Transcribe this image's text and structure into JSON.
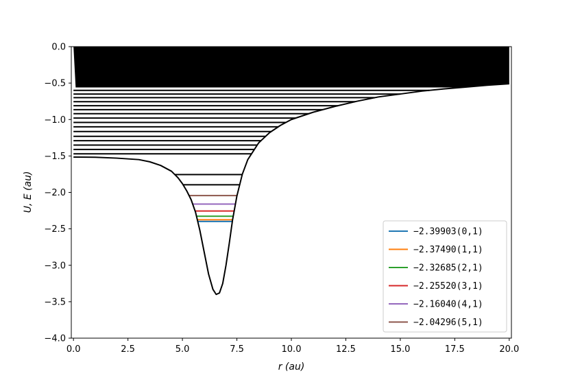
{
  "chart_data": {
    "type": "line",
    "title": "",
    "xlabel": "r (au)",
    "ylabel": "U, E (au)",
    "xlim": [
      -0.1,
      20.1
    ],
    "ylim": [
      -4.0,
      0.0
    ],
    "xticks": [
      0.0,
      2.5,
      5.0,
      7.5,
      10.0,
      12.5,
      15.0,
      17.5,
      20.0
    ],
    "xtick_labels": [
      "0.0",
      "2.5",
      "5.0",
      "7.5",
      "10.0",
      "12.5",
      "15.0",
      "17.5",
      "20.0"
    ],
    "yticks": [
      0.0,
      -0.5,
      -1.0,
      -1.5,
      -2.0,
      -2.5,
      -3.0,
      -3.5,
      -4.0
    ],
    "ytick_labels": [
      "0.0",
      "−0.5",
      "−1.0",
      "−1.5",
      "−2.0",
      "−2.5",
      "−3.0",
      "−3.5",
      "−4.0"
    ],
    "potential": {
      "color": "#000000",
      "points": [
        [
          0.0,
          -1.515
        ],
        [
          1.0,
          -1.518
        ],
        [
          2.0,
          -1.53
        ],
        [
          3.0,
          -1.55
        ],
        [
          3.5,
          -1.58
        ],
        [
          4.0,
          -1.63
        ],
        [
          4.5,
          -1.71
        ],
        [
          4.8,
          -1.8
        ],
        [
          5.0,
          -1.88
        ],
        [
          5.2,
          -1.98
        ],
        [
          5.4,
          -2.1
        ],
        [
          5.6,
          -2.27
        ],
        [
          5.8,
          -2.52
        ],
        [
          6.0,
          -2.82
        ],
        [
          6.2,
          -3.12
        ],
        [
          6.4,
          -3.33
        ],
        [
          6.55,
          -3.4
        ],
        [
          6.7,
          -3.38
        ],
        [
          6.85,
          -3.25
        ],
        [
          7.0,
          -3.0
        ],
        [
          7.15,
          -2.7
        ],
        [
          7.3,
          -2.38
        ],
        [
          7.5,
          -2.05
        ],
        [
          7.75,
          -1.75
        ],
        [
          8.0,
          -1.55
        ],
        [
          8.5,
          -1.32
        ],
        [
          9.0,
          -1.18
        ],
        [
          9.5,
          -1.08
        ],
        [
          10.0,
          -1.0
        ],
        [
          11.0,
          -0.9
        ],
        [
          12.0,
          -0.82
        ],
        [
          13.0,
          -0.75
        ],
        [
          14.0,
          -0.69
        ],
        [
          15.0,
          -0.65
        ],
        [
          16.0,
          -0.61
        ],
        [
          17.0,
          -0.58
        ],
        [
          18.0,
          -0.555
        ],
        [
          19.0,
          -0.53
        ],
        [
          20.0,
          -0.51
        ]
      ]
    },
    "continuum_fill": {
      "color": "#000000",
      "from_energy": -0.56,
      "to_energy": 0.0,
      "x_range": [
        0.0,
        20.0
      ]
    },
    "upper_levels": {
      "color": "#000000",
      "energies": [
        -0.6,
        -0.65,
        -0.7,
        -0.755,
        -0.81,
        -0.865,
        -0.92,
        -0.98,
        -1.04,
        -1.1,
        -1.165,
        -1.23,
        -1.29,
        -1.35,
        -1.41,
        -1.47,
        -1.755,
        -1.895
      ]
    },
    "levels": [
      {
        "energy": -2.39903,
        "label": "−2.39903(0,1)",
        "color": "#1f77b4"
      },
      {
        "energy": -2.3749,
        "label": "−2.37490(1,1)",
        "color": "#ff7f0e"
      },
      {
        "energy": -2.32685,
        "label": "−2.32685(2,1)",
        "color": "#2ca02c"
      },
      {
        "energy": -2.2552,
        "label": "−2.25520(3,1)",
        "color": "#d62728"
      },
      {
        "energy": -2.1604,
        "label": "−2.16040(4,1)",
        "color": "#9467bd"
      },
      {
        "energy": -2.04296,
        "label": "−2.04296(5,1)",
        "color": "#8c564b"
      }
    ],
    "legend": {
      "placement": "lower-right"
    },
    "grid": false
  }
}
